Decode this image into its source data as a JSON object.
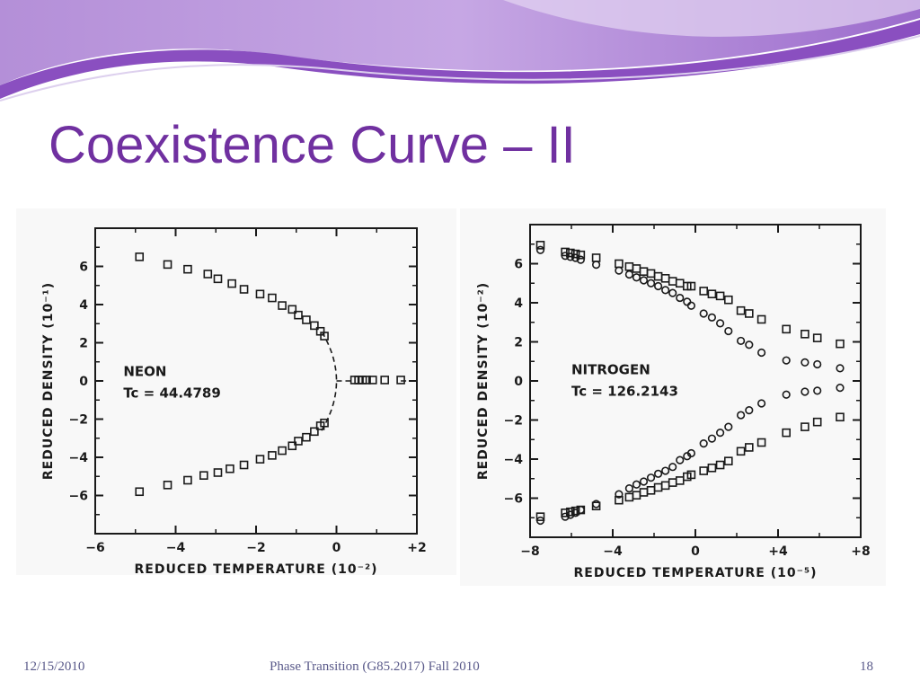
{
  "slide": {
    "title": "Coexistence Curve – II",
    "footer_date": "12/15/2010",
    "footer_course": "Phase Transition (G85.2017) Fall 2010",
    "footer_page": "18"
  },
  "theme": {
    "title_color": "#7030a0",
    "banner_dark": "#8a4fc0",
    "banner_light": "#c9a8e6"
  },
  "chart_data": [
    {
      "type": "scatter",
      "xlabel": "REDUCED TEMPERATURE (10⁻²)",
      "ylabel": "REDUCED DENSITY (10⁻¹)",
      "xlim": [
        -6,
        2
      ],
      "ylim": [
        -8,
        8
      ],
      "x_ticks": [
        -6,
        -4,
        -2,
        0,
        2
      ],
      "x_tick_labels": [
        "−6",
        "−4",
        "−2",
        "0",
        "+2"
      ],
      "y_ticks": [
        -6,
        -4,
        -2,
        0,
        2,
        4,
        6
      ],
      "y_tick_labels": [
        "−6",
        "−4",
        "−2",
        "0",
        "2",
        "4",
        "6"
      ],
      "annotation_lines": [
        "NEON",
        "Tc = 44.4789"
      ],
      "grid": false,
      "series": [
        {
          "marker": "square",
          "points": [
            [
              -4.9,
              6.5
            ],
            [
              -4.2,
              6.1
            ],
            [
              -3.7,
              5.85
            ],
            [
              -3.2,
              5.6
            ],
            [
              -2.95,
              5.35
            ],
            [
              -2.6,
              5.1
            ],
            [
              -2.3,
              4.8
            ],
            [
              -1.9,
              4.55
            ],
            [
              -1.6,
              4.35
            ],
            [
              -1.35,
              3.95
            ],
            [
              -1.1,
              3.75
            ],
            [
              -0.95,
              3.45
            ],
            [
              -0.75,
              3.2
            ],
            [
              -0.55,
              2.9
            ],
            [
              -0.4,
              2.6
            ],
            [
              -0.3,
              2.35
            ],
            [
              -4.9,
              -5.8
            ],
            [
              -4.2,
              -5.45
            ],
            [
              -3.7,
              -5.2
            ],
            [
              -3.3,
              -4.95
            ],
            [
              -2.95,
              -4.8
            ],
            [
              -2.65,
              -4.6
            ],
            [
              -2.3,
              -4.4
            ],
            [
              -1.9,
              -4.1
            ],
            [
              -1.6,
              -3.9
            ],
            [
              -1.35,
              -3.65
            ],
            [
              -1.1,
              -3.4
            ],
            [
              -0.95,
              -3.15
            ],
            [
              -0.75,
              -2.95
            ],
            [
              -0.55,
              -2.65
            ],
            [
              -0.4,
              -2.35
            ],
            [
              -0.3,
              -2.2
            ],
            [
              0.45,
              0.05
            ],
            [
              0.55,
              0.05
            ],
            [
              0.65,
              0.05
            ],
            [
              0.75,
              0.05
            ],
            [
              0.9,
              0.05
            ],
            [
              1.2,
              0.05
            ],
            [
              1.6,
              0.05
            ]
          ]
        }
      ],
      "fit_curve": "dashed parabola through the critical point at (0, 0)"
    },
    {
      "type": "scatter",
      "xlabel": "REDUCED TEMPERATURE (10⁻⁵)",
      "ylabel": "REDUCED DENSITY (10⁻²)",
      "xlim": [
        -8,
        8
      ],
      "ylim": [
        -8,
        8
      ],
      "x_ticks": [
        -8,
        -4,
        0,
        4,
        8
      ],
      "x_tick_labels": [
        "−8",
        "−4",
        "0",
        "+4",
        "+8"
      ],
      "y_ticks": [
        -6,
        -4,
        -2,
        0,
        2,
        4,
        6
      ],
      "y_tick_labels": [
        "−6",
        "−4",
        "−2",
        "0",
        "2",
        "4",
        "6"
      ],
      "annotation_lines": [
        "NITROGEN",
        "Tc = 126.2143"
      ],
      "grid": false,
      "series": [
        {
          "marker": "square",
          "points": [
            [
              -7.5,
              6.95
            ],
            [
              -6.3,
              6.6
            ],
            [
              -6.05,
              6.55
            ],
            [
              -5.8,
              6.5
            ],
            [
              -5.55,
              6.45
            ],
            [
              -4.8,
              6.3
            ],
            [
              -3.7,
              6.0
            ],
            [
              -3.2,
              5.85
            ],
            [
              -2.85,
              5.75
            ],
            [
              -2.5,
              5.6
            ],
            [
              -2.15,
              5.5
            ],
            [
              -1.8,
              5.35
            ],
            [
              -1.45,
              5.25
            ],
            [
              -1.1,
              5.1
            ],
            [
              -0.75,
              5.0
            ],
            [
              -0.4,
              4.85
            ],
            [
              -0.2,
              4.85
            ],
            [
              0.4,
              4.6
            ],
            [
              0.8,
              4.45
            ],
            [
              1.2,
              4.35
            ],
            [
              1.6,
              4.15
            ],
            [
              2.2,
              3.6
            ],
            [
              2.6,
              3.45
            ],
            [
              3.2,
              3.15
            ],
            [
              4.4,
              2.65
            ],
            [
              5.3,
              2.4
            ],
            [
              5.9,
              2.2
            ],
            [
              7.0,
              1.9
            ],
            [
              -7.5,
              -6.95
            ],
            [
              -6.3,
              -6.75
            ],
            [
              -6.05,
              -6.7
            ],
            [
              -5.8,
              -6.65
            ],
            [
              -5.55,
              -6.6
            ],
            [
              -4.8,
              -6.4
            ],
            [
              -3.7,
              -6.1
            ],
            [
              -3.2,
              -5.95
            ],
            [
              -2.85,
              -5.85
            ],
            [
              -2.5,
              -5.7
            ],
            [
              -2.15,
              -5.6
            ],
            [
              -1.8,
              -5.45
            ],
            [
              -1.45,
              -5.35
            ],
            [
              -1.1,
              -5.2
            ],
            [
              -0.75,
              -5.1
            ],
            [
              -0.4,
              -4.9
            ],
            [
              -0.2,
              -4.8
            ],
            [
              0.4,
              -4.6
            ],
            [
              0.8,
              -4.45
            ],
            [
              1.2,
              -4.3
            ],
            [
              1.6,
              -4.1
            ],
            [
              2.2,
              -3.6
            ],
            [
              2.6,
              -3.4
            ],
            [
              3.2,
              -3.15
            ],
            [
              4.4,
              -2.65
            ],
            [
              5.3,
              -2.35
            ],
            [
              5.9,
              -2.1
            ],
            [
              7.0,
              -1.85
            ]
          ]
        },
        {
          "marker": "circle",
          "points": [
            [
              -7.5,
              6.7
            ],
            [
              -6.3,
              6.4
            ],
            [
              -6.05,
              6.35
            ],
            [
              -5.8,
              6.3
            ],
            [
              -5.55,
              6.2
            ],
            [
              -4.8,
              5.95
            ],
            [
              -3.7,
              5.65
            ],
            [
              -3.2,
              5.45
            ],
            [
              -2.85,
              5.3
            ],
            [
              -2.5,
              5.15
            ],
            [
              -2.15,
              5.0
            ],
            [
              -1.8,
              4.85
            ],
            [
              -1.45,
              4.65
            ],
            [
              -1.1,
              4.5
            ],
            [
              -0.75,
              4.25
            ],
            [
              -0.4,
              4.05
            ],
            [
              -0.2,
              3.85
            ],
            [
              0.4,
              3.45
            ],
            [
              0.8,
              3.25
            ],
            [
              1.2,
              2.95
            ],
            [
              1.6,
              2.55
            ],
            [
              2.2,
              2.05
            ],
            [
              2.6,
              1.85
            ],
            [
              3.2,
              1.45
            ],
            [
              4.4,
              1.05
            ],
            [
              5.3,
              0.95
            ],
            [
              5.9,
              0.85
            ],
            [
              7.0,
              0.65
            ],
            [
              -7.5,
              -7.15
            ],
            [
              -6.3,
              -6.95
            ],
            [
              -6.05,
              -6.85
            ],
            [
              -5.8,
              -6.75
            ],
            [
              -5.55,
              -6.6
            ],
            [
              -4.8,
              -6.3
            ],
            [
              -3.7,
              -5.8
            ],
            [
              -3.2,
              -5.5
            ],
            [
              -2.85,
              -5.3
            ],
            [
              -2.5,
              -5.15
            ],
            [
              -2.15,
              -4.95
            ],
            [
              -1.8,
              -4.75
            ],
            [
              -1.45,
              -4.6
            ],
            [
              -1.1,
              -4.4
            ],
            [
              -0.75,
              -4.05
            ],
            [
              -0.4,
              -3.85
            ],
            [
              -0.2,
              -3.7
            ],
            [
              0.4,
              -3.2
            ],
            [
              0.8,
              -2.95
            ],
            [
              1.2,
              -2.65
            ],
            [
              1.6,
              -2.35
            ],
            [
              2.2,
              -1.75
            ],
            [
              2.6,
              -1.5
            ],
            [
              3.2,
              -1.15
            ],
            [
              4.4,
              -0.7
            ],
            [
              5.3,
              -0.55
            ],
            [
              5.9,
              -0.5
            ],
            [
              7.0,
              -0.35
            ]
          ]
        }
      ]
    }
  ]
}
